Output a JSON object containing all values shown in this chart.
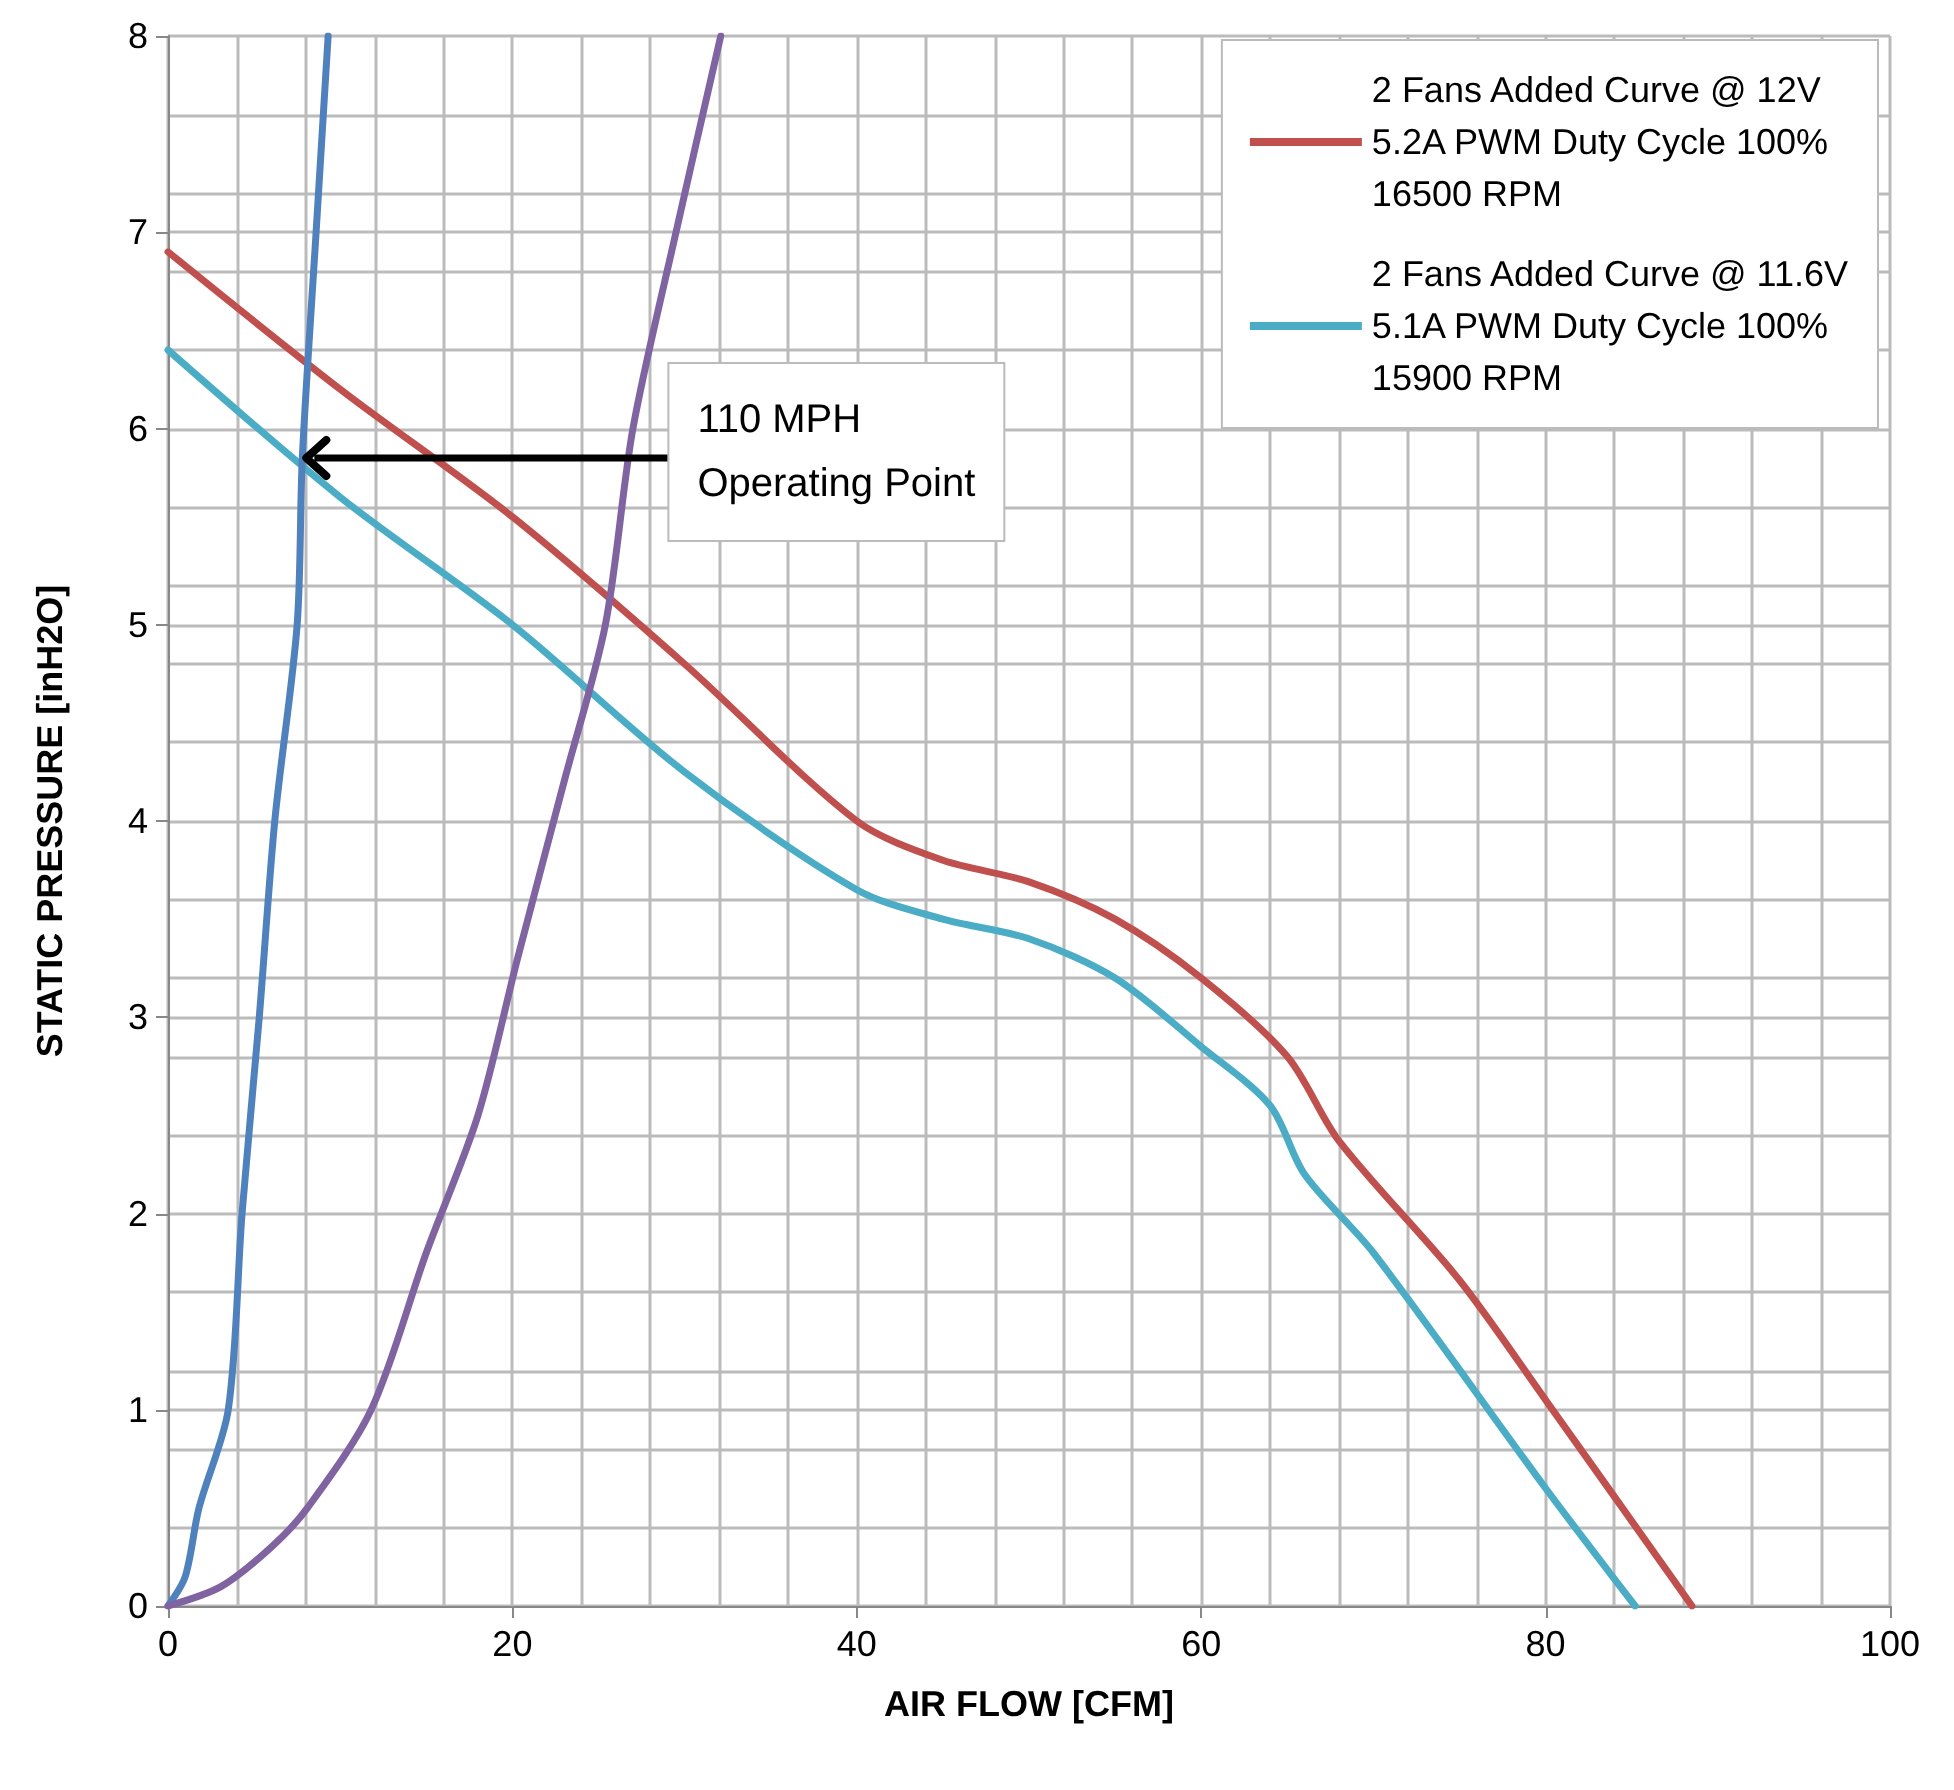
{
  "chart_data": {
    "type": "line",
    "xlabel": "AIR FLOW [CFM]",
    "ylabel": "STATIC PRESSURE [inH2O]",
    "xlim": [
      0,
      100
    ],
    "xticks": [
      0,
      20,
      40,
      60,
      80,
      100
    ],
    "ylim": [
      0,
      8
    ],
    "yticks": [
      0,
      1,
      2,
      3,
      4,
      5,
      6,
      7,
      8
    ],
    "grid": true,
    "legend": "top right",
    "marker": "none",
    "line_style": "solid",
    "series": [
      {
        "name": "2 Fans Added Curve @ 12V\n5.2A PWM Duty Cycle 100%\n16500 RPM",
        "color": "#c0504d",
        "x": [
          0,
          10,
          20,
          30,
          40,
          45,
          50,
          55,
          60,
          65,
          68,
          75,
          80,
          88.5
        ],
        "values": [
          6.9,
          6.2,
          5.55,
          4.8,
          4.0,
          3.8,
          3.69,
          3.5,
          3.2,
          2.8,
          2.37,
          1.66,
          1.05,
          0
        ]
      },
      {
        "name": "2 Fans Added Curve @ 11.6V\n5.1A PWM Duty Cycle 100%\n15900 RPM",
        "color": "#4bacc6",
        "x": [
          0,
          10,
          20,
          30,
          40,
          45,
          50,
          55,
          60,
          64,
          66,
          70,
          80,
          85.2
        ],
        "values": [
          6.4,
          5.65,
          5.0,
          4.25,
          3.65,
          3.5,
          3.4,
          3.2,
          2.85,
          2.55,
          2.2,
          1.8,
          0.6,
          0
        ]
      },
      {
        "color": "#4f81bd",
        "x": [
          0,
          1,
          1.8,
          3.5,
          4.3,
          5.3,
          6.2,
          7.5,
          7.8,
          8.6,
          9.3
        ],
        "values": [
          0,
          0.15,
          0.5,
          1,
          2,
          3,
          4,
          5,
          5.85,
          7,
          8
        ]
      },
      {
        "color": "#8064a2",
        "x": [
          0,
          3.1,
          6,
          8.1,
          11.8,
          15,
          18,
          20.3,
          23,
          25.4,
          27,
          29.5,
          32.1
        ],
        "values": [
          0,
          0.1,
          0.3,
          0.5,
          1,
          1.8,
          2.5,
          3.3,
          4.2,
          5,
          6,
          7,
          8
        ]
      }
    ],
    "annotations": [
      {
        "text": "110 MPH\nOperating Point",
        "x": 7.8,
        "y": 5.85
      }
    ]
  }
}
